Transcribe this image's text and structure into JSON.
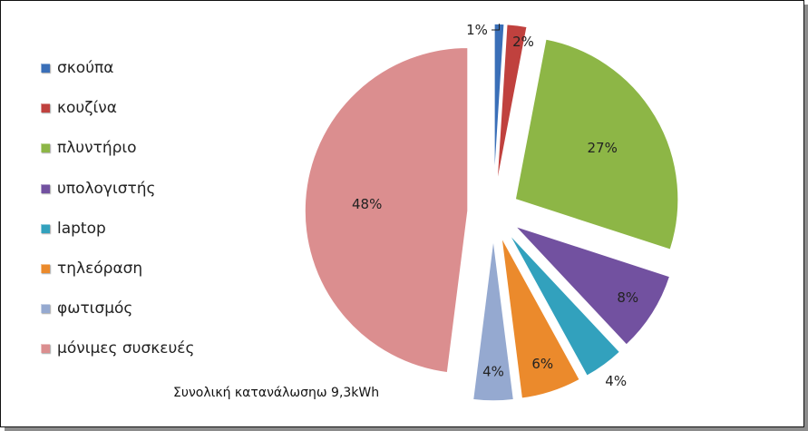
{
  "chart_data": {
    "type": "pie",
    "subtitle": "Συνολική κατανάλωσηω 9,3kWh",
    "legend_position": "left",
    "categories": [
      "σκούπα",
      "κουζίνα",
      "πλυντήριο",
      "υπολογιστής",
      "laptop",
      "τηλεόραση",
      "φωτισμός",
      "μόνιμες συσκευές"
    ],
    "values": [
      1,
      2,
      27,
      8,
      4,
      6,
      4,
      48
    ],
    "labels": [
      "1%",
      "2%",
      "27%",
      "8%",
      "4%",
      "6%",
      "4%",
      "48%"
    ],
    "colors": [
      "#3A6FB8",
      "#C0413E",
      "#8DB646",
      "#7251A0",
      "#32A1BD",
      "#EB8A2C",
      "#95A9D0",
      "#DB8E8F"
    ]
  }
}
